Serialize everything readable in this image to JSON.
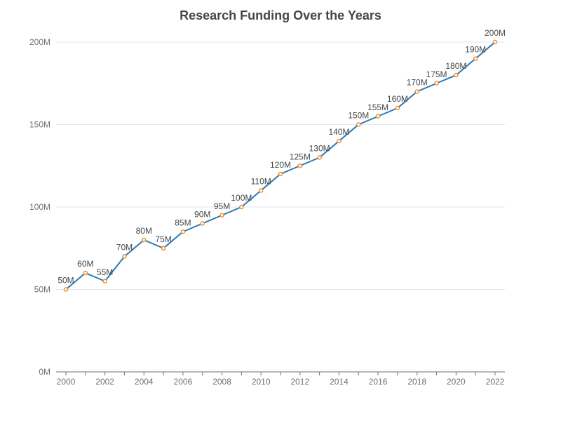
{
  "chart_data": {
    "type": "line",
    "title": "Research Funding Over the Years",
    "x": [
      "2000",
      "2001",
      "2002",
      "2003",
      "2004",
      "2005",
      "2006",
      "2007",
      "2008",
      "2009",
      "2010",
      "2011",
      "2012",
      "2013",
      "2014",
      "2015",
      "2016",
      "2017",
      "2018",
      "2019",
      "2020",
      "2021",
      "2022"
    ],
    "x_tick_labels": [
      "2000",
      "2002",
      "2004",
      "2006",
      "2008",
      "2010",
      "2012",
      "2014",
      "2016",
      "2018",
      "2020",
      "2022"
    ],
    "series": [
      {
        "values": [
          50,
          60,
          55,
          70,
          80,
          75,
          85,
          90,
          95,
          100,
          110,
          120,
          125,
          130,
          140,
          150,
          155,
          160,
          170,
          175,
          180,
          190,
          200
        ],
        "labels": [
          "50M",
          "60M",
          "55M",
          "70M",
          "80M",
          "75M",
          "85M",
          "90M",
          "95M",
          "100M",
          "110M",
          "120M",
          "125M",
          "130M",
          "140M",
          "150M",
          "155M",
          "160M",
          "170M",
          "175M",
          "180M",
          "190M",
          "200M"
        ]
      }
    ],
    "y_ticks": [
      0,
      50,
      100,
      150,
      200
    ],
    "y_tick_labels": [
      "0M",
      "50M",
      "100M",
      "150M",
      "200M"
    ],
    "ylim": [
      0,
      200
    ],
    "xlabel": "",
    "ylabel": "",
    "grid": "horizontal",
    "line_color": "#2878b5",
    "marker_color": "#f28e2b"
  }
}
